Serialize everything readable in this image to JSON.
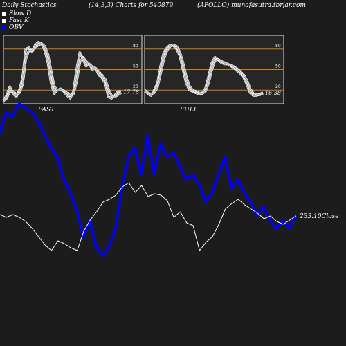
{
  "header": {
    "left": "Daily Stochastics",
    "center": "(14,3,3) Charts for 540879",
    "right": "(APOLLO) munafasutra.tbrjar.com"
  },
  "legend": [
    {
      "label": "Slow  D",
      "color": "#ffffff"
    },
    {
      "label": "Fast K",
      "color": "#ffffff"
    },
    {
      "label": "OBV",
      "color": "#0000ff"
    }
  ],
  "chart_data": [
    {
      "type": "line",
      "title": "FAST",
      "yticks": [
        20,
        50,
        80
      ],
      "ylim": [
        0,
        100
      ],
      "last_value_label": "17.78",
      "series": [
        {
          "name": "Fast K",
          "values": [
            5,
            12,
            25,
            15,
            10,
            20,
            38,
            80,
            82,
            76,
            86,
            90,
            88,
            78,
            60,
            30,
            15,
            20,
            22,
            18,
            12,
            8,
            18,
            50,
            75,
            65,
            55,
            58,
            50,
            52,
            42,
            38,
            30,
            10,
            8,
            12,
            18,
            17.78
          ]
        },
        {
          "name": "Slow  D",
          "values": [
            4,
            8,
            18,
            18,
            14,
            16,
            28,
            65,
            78,
            78,
            82,
            86,
            88,
            84,
            72,
            48,
            25,
            20,
            20,
            19,
            16,
            12,
            14,
            32,
            60,
            68,
            62,
            58,
            54,
            52,
            47,
            42,
            36,
            22,
            12,
            10,
            13,
            16
          ]
        }
      ]
    },
    {
      "type": "line",
      "title": "FULL",
      "yticks": [
        20,
        50,
        80
      ],
      "ylim": [
        0,
        100
      ],
      "last_value_label": "16.38",
      "series": [
        {
          "name": "Fast K",
          "values": [
            20,
            15,
            12,
            20,
            30,
            55,
            75,
            82,
            86,
            85,
            80,
            70,
            50,
            30,
            20,
            18,
            16,
            14,
            16,
            22,
            40,
            60,
            68,
            64,
            60,
            58,
            58,
            55,
            52,
            48,
            44,
            38,
            28,
            16,
            12,
            12,
            14,
            16.38
          ]
        },
        {
          "name": "Slow  D",
          "values": [
            18,
            16,
            14,
            16,
            24,
            44,
            65,
            78,
            84,
            86,
            84,
            76,
            60,
            40,
            26,
            20,
            18,
            16,
            15,
            18,
            30,
            50,
            63,
            65,
            62,
            60,
            58,
            56,
            54,
            51,
            47,
            42,
            34,
            22,
            15,
            13,
            13,
            15
          ]
        }
      ]
    },
    {
      "type": "line",
      "last_value_label": "233.10",
      "last_value_suffix": "Close",
      "series": [
        {
          "name": "OBV",
          "values": [
            57,
            62,
            61,
            64,
            63,
            62,
            60,
            57,
            54,
            52,
            47,
            44,
            40,
            34,
            38,
            32,
            30,
            32,
            36,
            45,
            52,
            54,
            48,
            57,
            48,
            55,
            52,
            53,
            50,
            47,
            48,
            46,
            42,
            44,
            48,
            52,
            45,
            47,
            44,
            42,
            39,
            41,
            38,
            36,
            38,
            36,
            39
          ]
        },
        {
          "name": "Close",
          "values": [
            234,
            232,
            234,
            232,
            229,
            224,
            218,
            212,
            208,
            215,
            213,
            210,
            208,
            222,
            230,
            236,
            243,
            245,
            248,
            254,
            257,
            250,
            255,
            247,
            249,
            248,
            244,
            232,
            236,
            228,
            226,
            208,
            214,
            218,
            227,
            238,
            242,
            245,
            241,
            238,
            235,
            231,
            233,
            229,
            227,
            230,
            233.1
          ]
        }
      ]
    }
  ]
}
